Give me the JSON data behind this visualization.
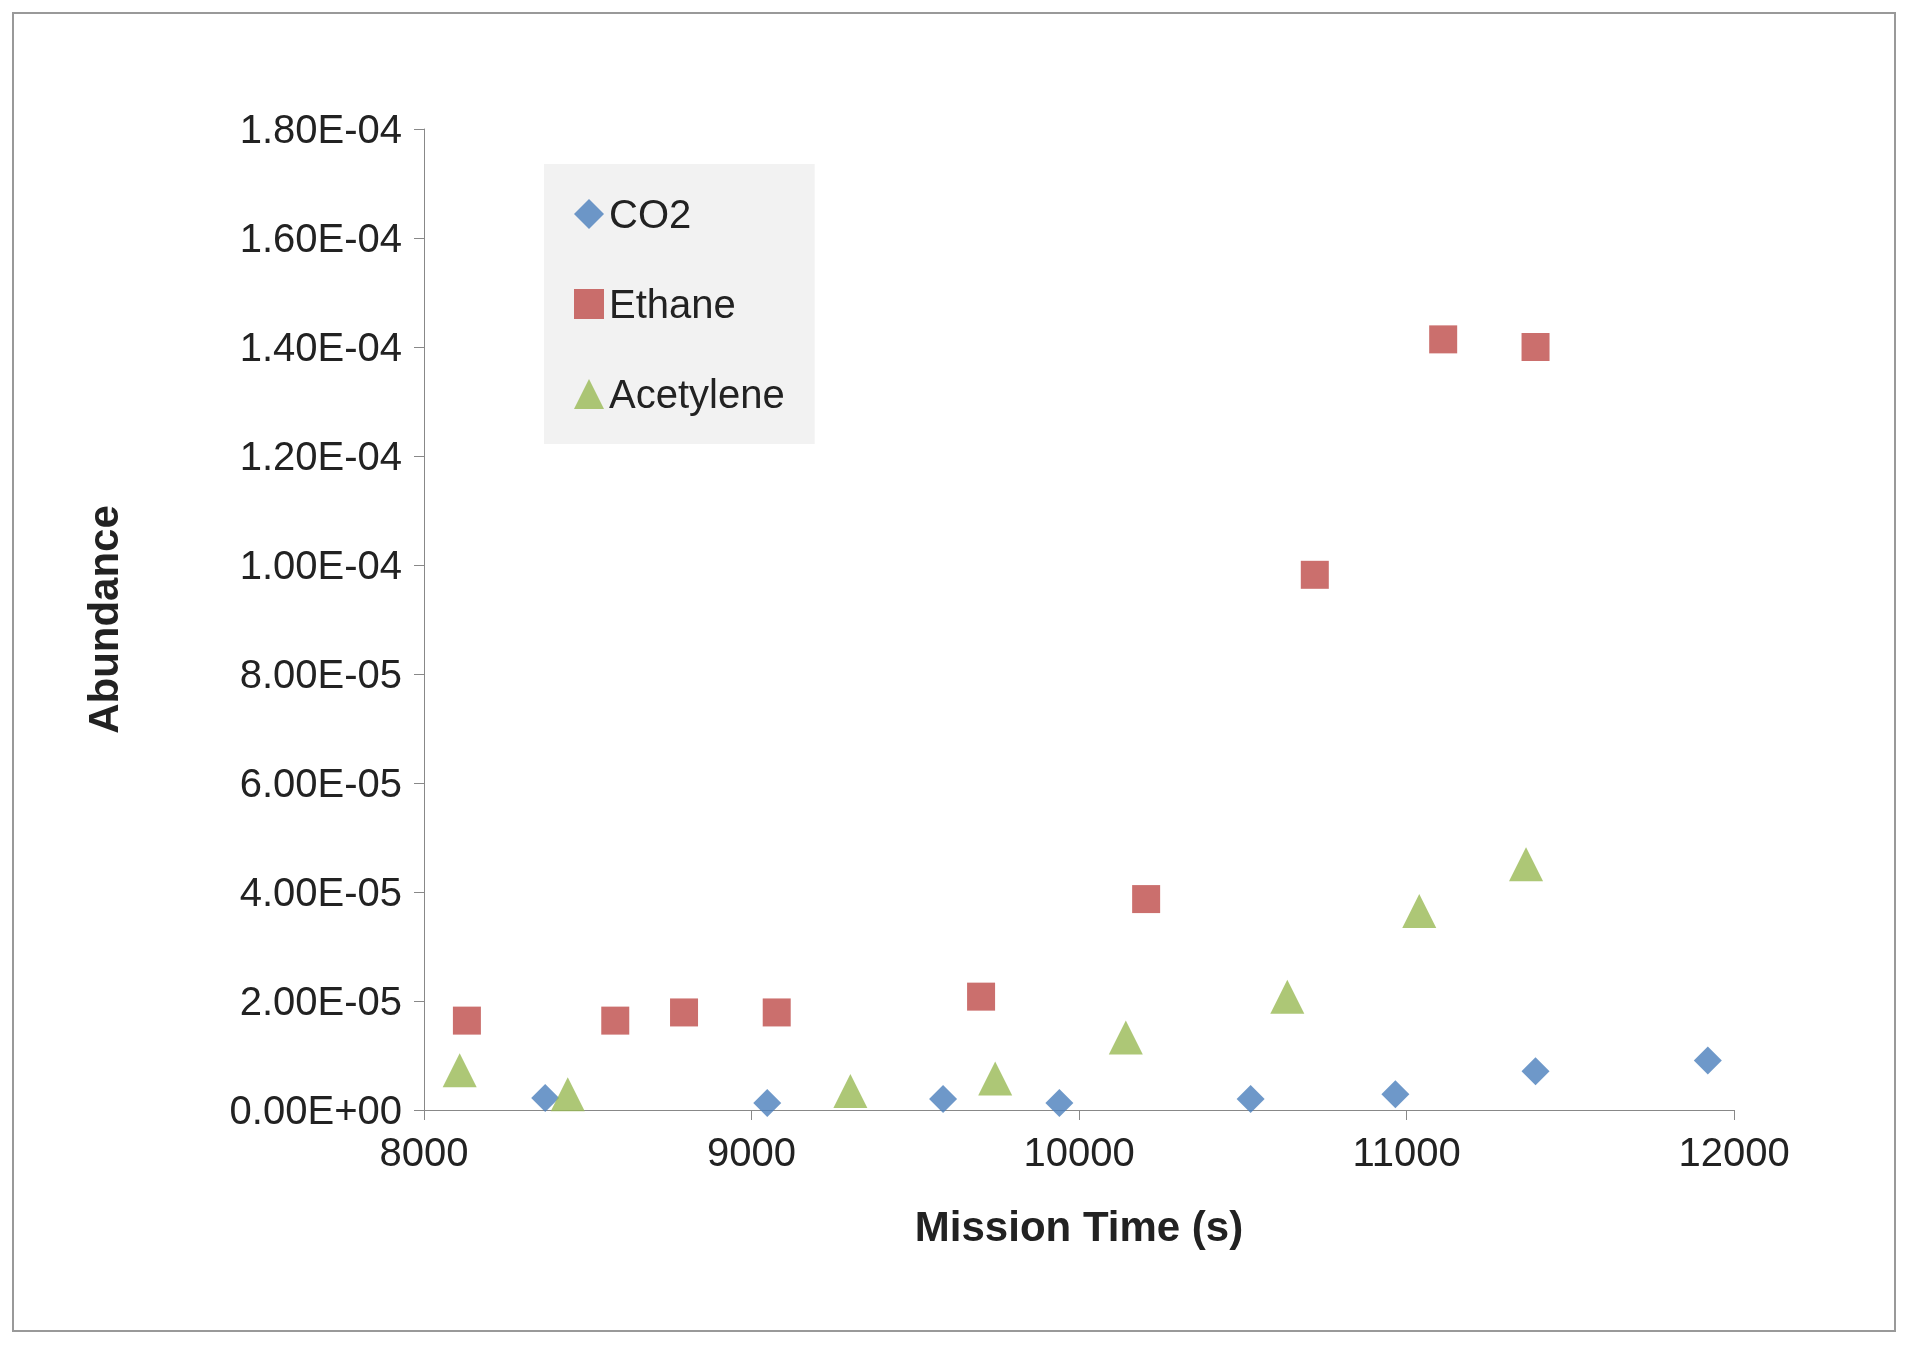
{
  "chart_data": {
    "type": "scatter",
    "xlabel": "Mission Time (s)",
    "ylabel": "Abundance",
    "series": [
      {
        "name": "CO2",
        "color": "#4a7ebb",
        "marker": "diamond",
        "x": [
          8370,
          9048,
          9585,
          9940,
          10524,
          10966,
          11394,
          11920
        ],
        "values": [
          2.2e-06,
          1.3e-06,
          2e-06,
          1.3e-06,
          2e-06,
          2.9e-06,
          7.1e-06,
          9.1e-06
        ]
      },
      {
        "name": "Ethane",
        "color": "#be4b48",
        "marker": "square",
        "x": [
          8131,
          8584,
          8794,
          9077,
          9701,
          10205,
          10720,
          11112,
          11394
        ],
        "values": [
          1.64e-05,
          1.64e-05,
          1.79e-05,
          1.79e-05,
          2.08e-05,
          3.87e-05,
          9.82e-05,
          0.0001414,
          0.00014
        ]
      },
      {
        "name": "Acetylene",
        "color": "#98b954",
        "marker": "triangle",
        "x": [
          8109,
          8439,
          9302,
          9744,
          10143,
          10636,
          11039,
          11365
        ],
        "values": [
          7.3e-06,
          2.9e-06,
          3.5e-06,
          5.8e-06,
          1.33e-05,
          2.08e-05,
          3.65e-05,
          4.51e-05
        ]
      }
    ],
    "xlim": [
      8000,
      12000
    ],
    "xticks": [
      8000,
      9000,
      10000,
      11000,
      12000
    ],
    "ylim": [
      0,
      0.00018
    ],
    "yticks": [
      {
        "value": 0,
        "label": "0.00E+00"
      },
      {
        "value": 2e-05,
        "label": "2.00E-05"
      },
      {
        "value": 4e-05,
        "label": "4.00E-05"
      },
      {
        "value": 6e-05,
        "label": "6.00E-05"
      },
      {
        "value": 8e-05,
        "label": "8.00E-05"
      },
      {
        "value": 0.0001,
        "label": "1.00E-04"
      },
      {
        "value": 0.00012,
        "label": "1.20E-04"
      },
      {
        "value": 0.00014,
        "label": "1.40E-04"
      },
      {
        "value": 0.00016,
        "label": "1.60E-04"
      },
      {
        "value": 0.00018,
        "label": "1.80E-04"
      }
    ],
    "grid": false,
    "legend": "top left"
  }
}
